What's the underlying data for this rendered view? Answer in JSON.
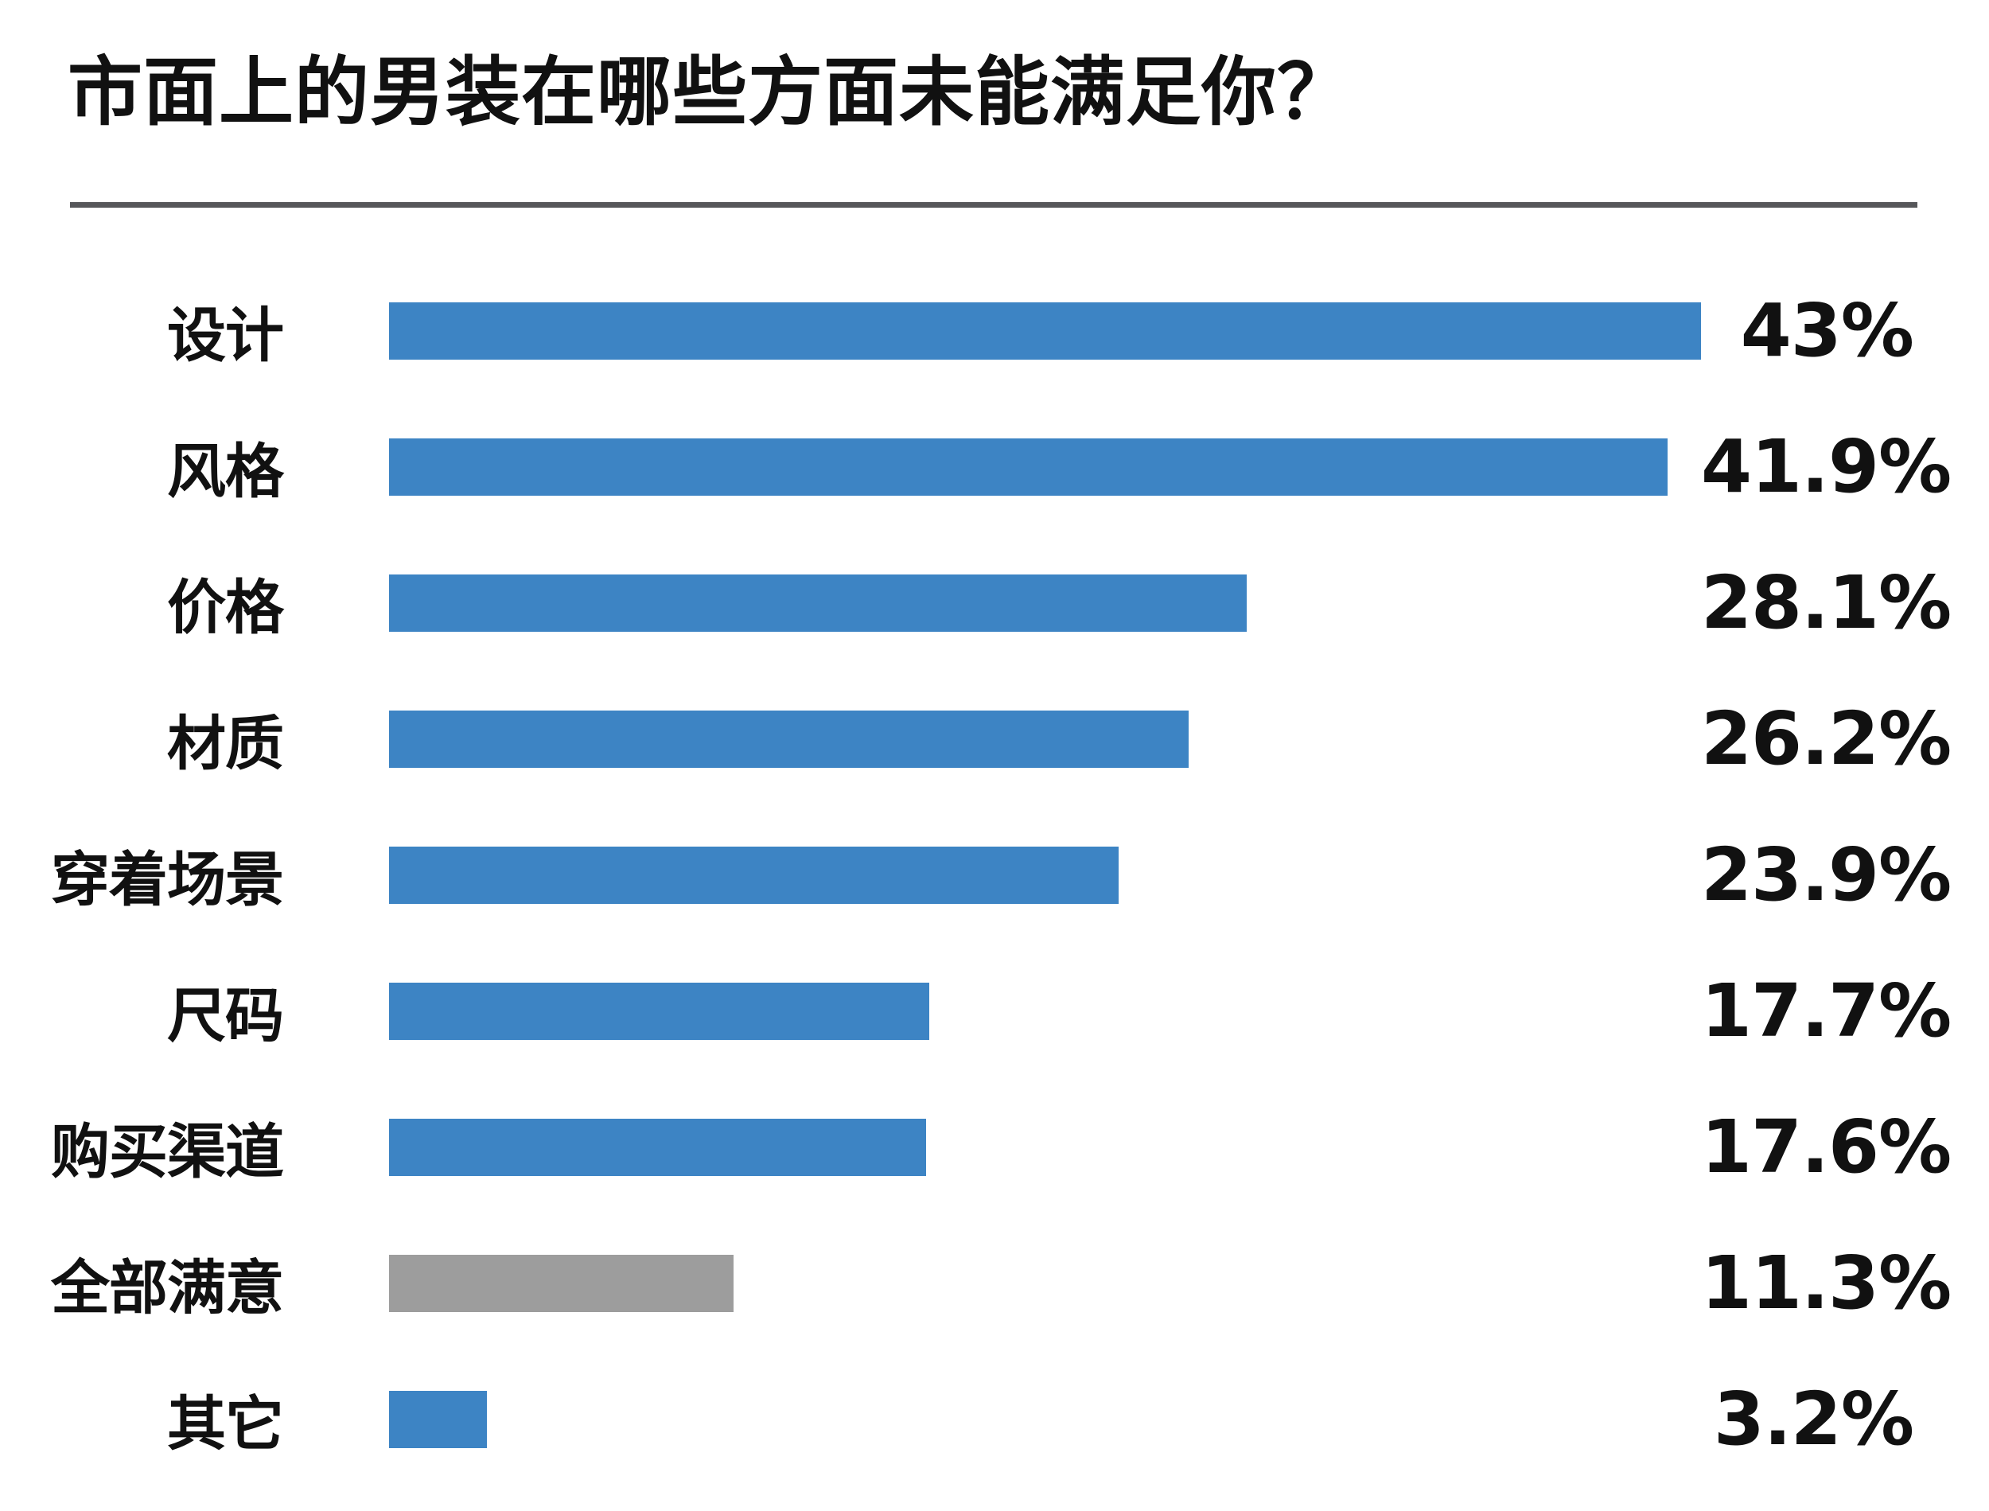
{
  "page": {
    "background": "#ffffff"
  },
  "header": {
    "title": "市面上的男装在哪些方面未能满足你？"
  },
  "colors": {
    "bar_default": "#3d84c4",
    "bar_satisfied": "#9d9d9d",
    "divider": "#56575a",
    "text": "#111111"
  },
  "chart_data": {
    "type": "bar",
    "orientation": "horizontal",
    "title": "市面上的男装在哪些方面未能满足你？",
    "xlim": [
      0,
      43
    ],
    "grid": false,
    "legend": false,
    "rows": [
      {
        "label": "设计",
        "value": 43,
        "display": "43%",
        "color": "#3d84c4"
      },
      {
        "label": "风格",
        "value": 41.9,
        "display": "41.9%",
        "color": "#3d84c4"
      },
      {
        "label": "价格",
        "value": 28.1,
        "display": "28.1%",
        "color": "#3d84c4"
      },
      {
        "label": "材质",
        "value": 26.2,
        "display": "26.2%",
        "color": "#3d84c4"
      },
      {
        "label": "穿着场景",
        "value": 23.9,
        "display": "23.9%",
        "color": "#3d84c4"
      },
      {
        "label": "尺码",
        "value": 17.7,
        "display": "17.7%",
        "color": "#3d84c4"
      },
      {
        "label": "购买渠道",
        "value": 17.6,
        "display": "17.6%",
        "color": "#3d84c4"
      },
      {
        "label": "全部满意",
        "value": 11.3,
        "display": "11.3%",
        "color": "#9d9d9d"
      },
      {
        "label": "其它",
        "value": 3.2,
        "display": "3.2%",
        "color": "#3d84c4"
      }
    ]
  }
}
